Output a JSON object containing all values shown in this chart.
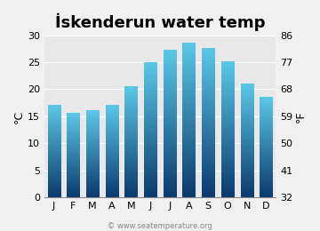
{
  "title": "İskenderun water temp",
  "months": [
    "J",
    "F",
    "M",
    "A",
    "M",
    "J",
    "J",
    "A",
    "S",
    "O",
    "N",
    "D"
  ],
  "values_c": [
    17.0,
    15.5,
    16.0,
    17.0,
    20.5,
    24.8,
    27.2,
    28.4,
    27.5,
    25.0,
    21.0,
    18.5
  ],
  "ylim_c": [
    0,
    30
  ],
  "yticks_c": [
    0,
    5,
    10,
    15,
    20,
    25,
    30
  ],
  "yticks_f": [
    32,
    41,
    50,
    59,
    68,
    77,
    86
  ],
  "ylabel_left": "°C",
  "ylabel_right": "°F",
  "bar_color_top": "#5bc8e8",
  "bar_color_bottom": "#0a3a6e",
  "background_color": "#f0f0f0",
  "plot_bg_color": "#e8e8e8",
  "title_fontsize": 13,
  "tick_fontsize": 8,
  "label_fontsize": 9,
  "watermark": "© www.seatemperature.org"
}
